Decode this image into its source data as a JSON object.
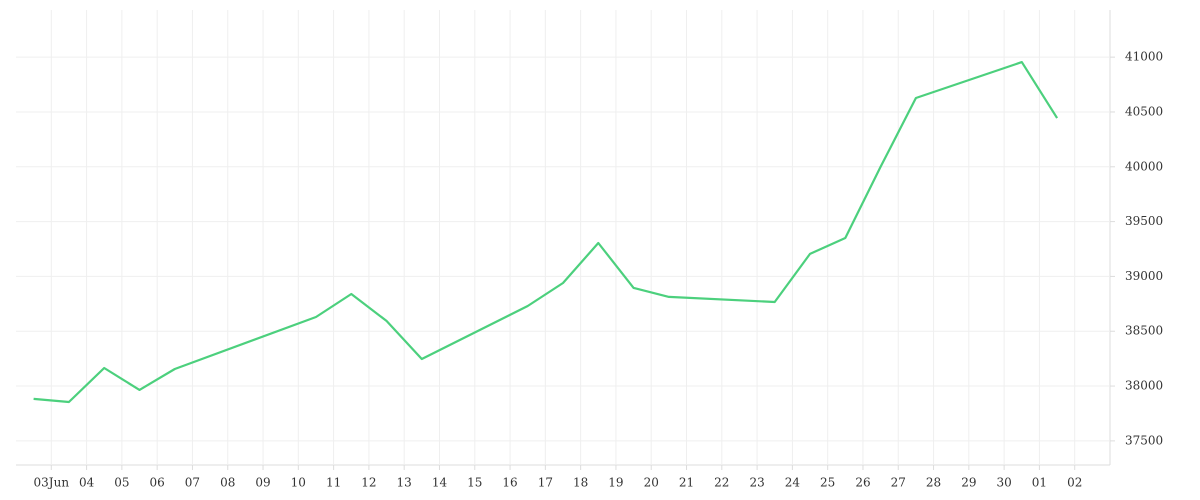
{
  "chart_data": {
    "type": "line",
    "x": [
      -0.5,
      0.5,
      1.5,
      2.5,
      3.5,
      7.5,
      8.5,
      9.5,
      10.5,
      13.5,
      14.5,
      15.5,
      16.5,
      17.5,
      20.5,
      21.5,
      22.5,
      23.5,
      24.5,
      27.5,
      28.5
    ],
    "series": [
      {
        "color": "#4cd07d",
        "values": [
          37883,
          37855,
          38165,
          37965,
          38156,
          38630,
          38840,
          38594,
          38247,
          38730,
          38940,
          39305,
          38895,
          38813,
          38767,
          39205,
          39350,
          40000,
          40627,
          40955,
          40444
        ]
      }
    ],
    "xlim": [
      -1,
      30
    ],
    "xticks": [
      {
        "value": 0,
        "label": "03Jun"
      },
      {
        "value": 1,
        "label": "04"
      },
      {
        "value": 2,
        "label": "05"
      },
      {
        "value": 3,
        "label": "06"
      },
      {
        "value": 4,
        "label": "07"
      },
      {
        "value": 5,
        "label": "08"
      },
      {
        "value": 6,
        "label": "09"
      },
      {
        "value": 7,
        "label": "10"
      },
      {
        "value": 8,
        "label": "11"
      },
      {
        "value": 9,
        "label": "12"
      },
      {
        "value": 10,
        "label": "13"
      },
      {
        "value": 11,
        "label": "14"
      },
      {
        "value": 12,
        "label": "15"
      },
      {
        "value": 13,
        "label": "16"
      },
      {
        "value": 14,
        "label": "17"
      },
      {
        "value": 15,
        "label": "18"
      },
      {
        "value": 16,
        "label": "19"
      },
      {
        "value": 17,
        "label": "20"
      },
      {
        "value": 18,
        "label": "21"
      },
      {
        "value": 19,
        "label": "22"
      },
      {
        "value": 20,
        "label": "23"
      },
      {
        "value": 21,
        "label": "24"
      },
      {
        "value": 22,
        "label": "25"
      },
      {
        "value": 23,
        "label": "26"
      },
      {
        "value": 24,
        "label": "27"
      },
      {
        "value": 25,
        "label": "28"
      },
      {
        "value": 26,
        "label": "29"
      },
      {
        "value": 27,
        "label": "30"
      },
      {
        "value": 28,
        "label": "01"
      },
      {
        "value": 29,
        "label": "02"
      }
    ],
    "ylim": [
      37280,
      41430
    ],
    "yticks": [
      37500,
      38000,
      38500,
      39000,
      39500,
      40000,
      40500,
      41000
    ],
    "grid": true
  }
}
